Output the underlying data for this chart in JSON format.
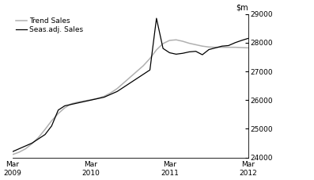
{
  "title": "",
  "legend": [
    "Seas.adj. Sales",
    "Trend Sales"
  ],
  "legend_colors": [
    "#000000",
    "#b0b0b0"
  ],
  "ylim": [
    24000,
    29000
  ],
  "yticks": [
    24000,
    25000,
    26000,
    27000,
    28000,
    29000
  ],
  "background_color": "#ffffff",
  "seas_adj_x": [
    0,
    1,
    2,
    3,
    4,
    5,
    6,
    7,
    8,
    9,
    10,
    11,
    12,
    13,
    14,
    15,
    16,
    17,
    18,
    19,
    20,
    21,
    22,
    23,
    24,
    25,
    26,
    27,
    28,
    29,
    30,
    31,
    32,
    33,
    34,
    35,
    36
  ],
  "seas_adj_y": [
    24200,
    24300,
    24400,
    24500,
    24650,
    24800,
    25100,
    25650,
    25800,
    25850,
    25900,
    25950,
    26000,
    26050,
    26100,
    26200,
    26300,
    26450,
    26600,
    26750,
    26900,
    27050,
    28850,
    27800,
    27650,
    27600,
    27630,
    27680,
    27700,
    27580,
    27760,
    27820,
    27880,
    27900,
    28000,
    28080,
    28150
  ],
  "trend_x": [
    0,
    1,
    2,
    3,
    4,
    5,
    6,
    7,
    8,
    9,
    10,
    11,
    12,
    13,
    14,
    15,
    16,
    17,
    18,
    19,
    20,
    21,
    22,
    23,
    24,
    25,
    26,
    27,
    28,
    29,
    30,
    31,
    32,
    33,
    34,
    35,
    36
  ],
  "trend_y": [
    24100,
    24180,
    24300,
    24480,
    24700,
    24980,
    25280,
    25530,
    25730,
    25870,
    25930,
    25970,
    26010,
    26060,
    26130,
    26250,
    26400,
    26600,
    26800,
    27000,
    27200,
    27450,
    27750,
    27970,
    28080,
    28100,
    28050,
    27980,
    27930,
    27880,
    27850,
    27840,
    27840,
    27840,
    27840,
    27830,
    27820
  ],
  "xtick_positions": [
    0,
    12,
    24,
    36
  ],
  "xtick_labels": [
    "Mar\n2009",
    "Mar\n2010",
    "Mar\n2011",
    "Mar\n2012"
  ],
  "figsize": [
    3.97,
    2.27
  ],
  "dpi": 100
}
